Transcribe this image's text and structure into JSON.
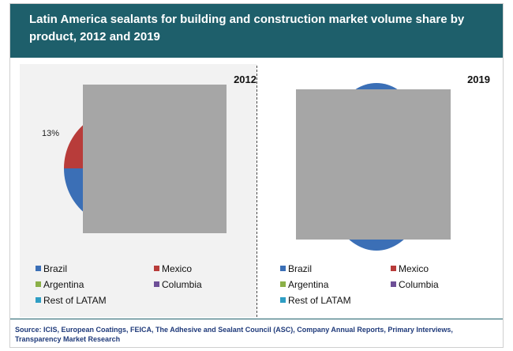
{
  "header": {
    "title": "Latin America sealants for building and construction market volume share by product, 2012 and 2019"
  },
  "colors": {
    "header_bg": "#1e5f6b",
    "Brazil": "#3b6fb6",
    "Mexico": "#b83c3a",
    "Argentina": "#8bb048",
    "Columbia": "#6e4f97",
    "Rest of LATAM": "#2f9ec4",
    "image_placeholder": "#a6a6a6"
  },
  "chart_data": [
    {
      "type": "pie",
      "title": "2012",
      "labels": [
        "Brazil",
        "Mexico",
        "Argentina",
        "Columbia",
        "Rest of LATAM"
      ],
      "visible_data_labels": [
        {
          "category": "Mexico",
          "text": "13%"
        }
      ],
      "legend_placement": "bottom",
      "note_obscured": true
    },
    {
      "type": "pie",
      "title": "2019",
      "labels": [
        "Brazil",
        "Mexico",
        "Argentina",
        "Columbia",
        "Rest of LATAM"
      ],
      "legend_placement": "bottom",
      "note_obscured": true
    }
  ],
  "legend": {
    "items": [
      "Brazil",
      "Mexico",
      "Argentina",
      "Columbia",
      "Rest of LATAM"
    ]
  },
  "footer": {
    "source": "Source: ICIS, European Coatings, FEICA, The Adhesive and Sealant Council (ASC), Company Annual Reports, Primary Interviews, Transparency Market Research"
  }
}
